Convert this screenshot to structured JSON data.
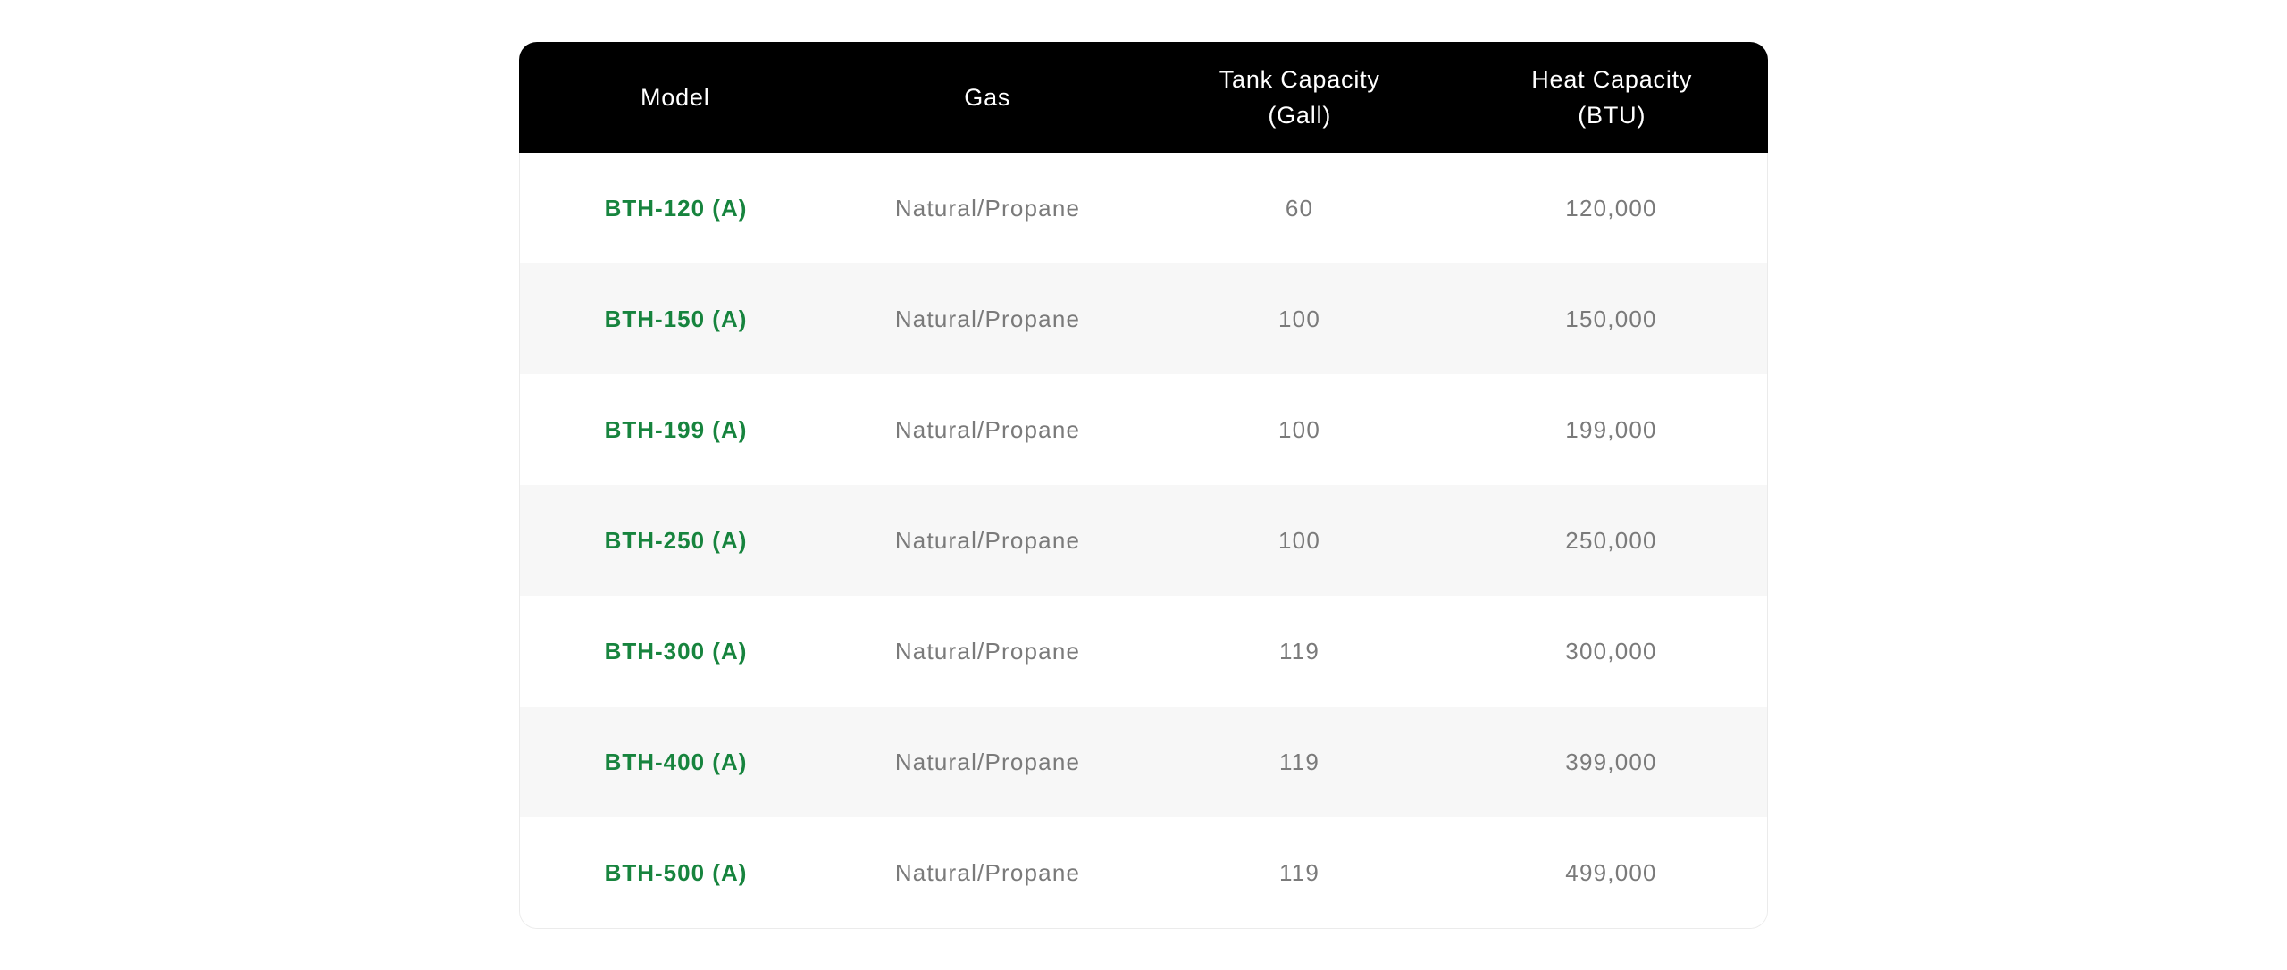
{
  "colors": {
    "page_background": "#ffffff",
    "header_background": "#000000",
    "header_text": "#ffffff",
    "model_link_green": "#17843e",
    "cell_text_gray": "#7a7a7a",
    "alt_row_background": "#f7f7f7",
    "card_border": "#ebebeb"
  },
  "table": {
    "columns": [
      {
        "line1": "Model",
        "line2": ""
      },
      {
        "line1": "Gas",
        "line2": ""
      },
      {
        "line1": "Tank Capacity",
        "line2": "(Gall)"
      },
      {
        "line1": "Heat Capacity",
        "line2": "(BTU)"
      }
    ],
    "rows": [
      {
        "model": "BTH-120 (A)",
        "gas": "Natural/Propane",
        "tank": "60",
        "heat": "120,000"
      },
      {
        "model": "BTH-150 (A)",
        "gas": "Natural/Propane",
        "tank": "100",
        "heat": "150,000"
      },
      {
        "model": "BTH-199 (A)",
        "gas": "Natural/Propane",
        "tank": "100",
        "heat": "199,000"
      },
      {
        "model": "BTH-250 (A)",
        "gas": "Natural/Propane",
        "tank": "100",
        "heat": "250,000"
      },
      {
        "model": "BTH-300 (A)",
        "gas": "Natural/Propane",
        "tank": "119",
        "heat": "300,000"
      },
      {
        "model": "BTH-400 (A)",
        "gas": "Natural/Propane",
        "tank": "119",
        "heat": "399,000"
      },
      {
        "model": "BTH-500 (A)",
        "gas": "Natural/Propane",
        "tank": "119",
        "heat": "499,000"
      }
    ]
  },
  "chart_data": {
    "type": "table",
    "title": "",
    "columns": [
      "Model",
      "Gas",
      "Tank Capacity (Gall)",
      "Heat Capacity (BTU)"
    ],
    "rows": [
      [
        "BTH-120 (A)",
        "Natural/Propane",
        60,
        120000
      ],
      [
        "BTH-150 (A)",
        "Natural/Propane",
        100,
        150000
      ],
      [
        "BTH-199 (A)",
        "Natural/Propane",
        100,
        199000
      ],
      [
        "BTH-250 (A)",
        "Natural/Propane",
        100,
        250000
      ],
      [
        "BTH-300 (A)",
        "Natural/Propane",
        119,
        300000
      ],
      [
        "BTH-400 (A)",
        "Natural/Propane",
        119,
        399000
      ],
      [
        "BTH-500 (A)",
        "Natural/Propane",
        119,
        499000
      ]
    ]
  }
}
